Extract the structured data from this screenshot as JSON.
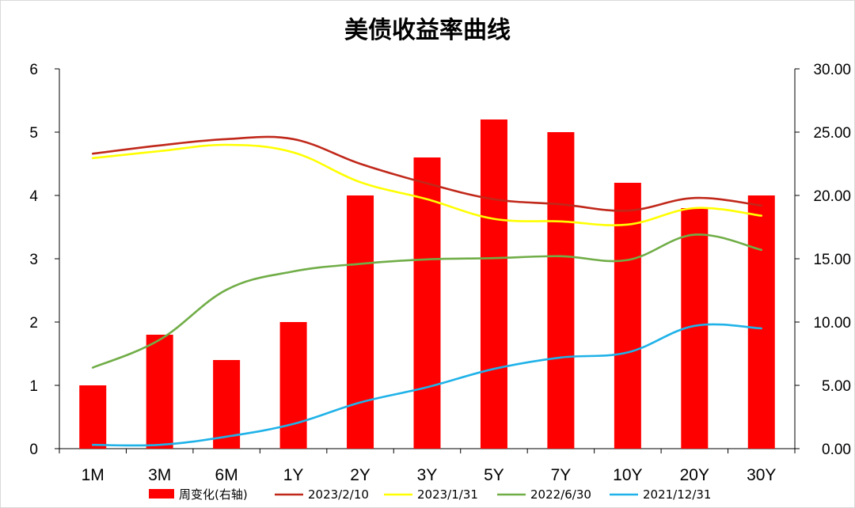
{
  "chart_data": {
    "type": "bar",
    "title": "美债收益率曲线",
    "categories": [
      "1M",
      "3M",
      "6M",
      "1Y",
      "2Y",
      "3Y",
      "5Y",
      "7Y",
      "10Y",
      "20Y",
      "30Y"
    ],
    "y_left": {
      "ylim": [
        0,
        6
      ],
      "ticks": [
        "0",
        "1",
        "2",
        "3",
        "4",
        "5",
        "6"
      ]
    },
    "y_right": {
      "ylim": [
        0,
        30
      ],
      "ticks": [
        "0.00",
        "5.00",
        "10.00",
        "15.00",
        "20.00",
        "25.00",
        "30.00"
      ]
    },
    "bars": {
      "name": "周变化(右轴)",
      "axis": "right",
      "color": "#ff0000",
      "values": [
        5,
        9,
        7,
        10,
        20,
        23,
        26,
        25,
        21,
        19,
        20
      ]
    },
    "series": [
      {
        "name": "2023/2/10",
        "axis": "left",
        "color": "#c0281a",
        "type": "line",
        "values": [
          4.66,
          4.79,
          4.89,
          4.89,
          4.5,
          4.19,
          3.94,
          3.86,
          3.76,
          3.96,
          3.84
        ]
      },
      {
        "name": "2023/1/31",
        "axis": "left",
        "color": "#ffff00",
        "type": "line",
        "values": [
          4.59,
          4.7,
          4.8,
          4.68,
          4.21,
          3.94,
          3.63,
          3.59,
          3.54,
          3.8,
          3.68
        ]
      },
      {
        "name": "2022/6/30",
        "axis": "left",
        "color": "#70ad47",
        "type": "line",
        "values": [
          1.28,
          1.72,
          2.51,
          2.8,
          2.92,
          2.99,
          3.01,
          3.04,
          2.98,
          3.38,
          3.14
        ]
      },
      {
        "name": "2021/12/31",
        "axis": "left",
        "color": "#1fb2e8",
        "type": "line",
        "values": [
          0.06,
          0.06,
          0.19,
          0.39,
          0.73,
          0.97,
          1.26,
          1.44,
          1.52,
          1.94,
          1.9
        ]
      }
    ],
    "legend_position": "bottom",
    "grid": false
  }
}
